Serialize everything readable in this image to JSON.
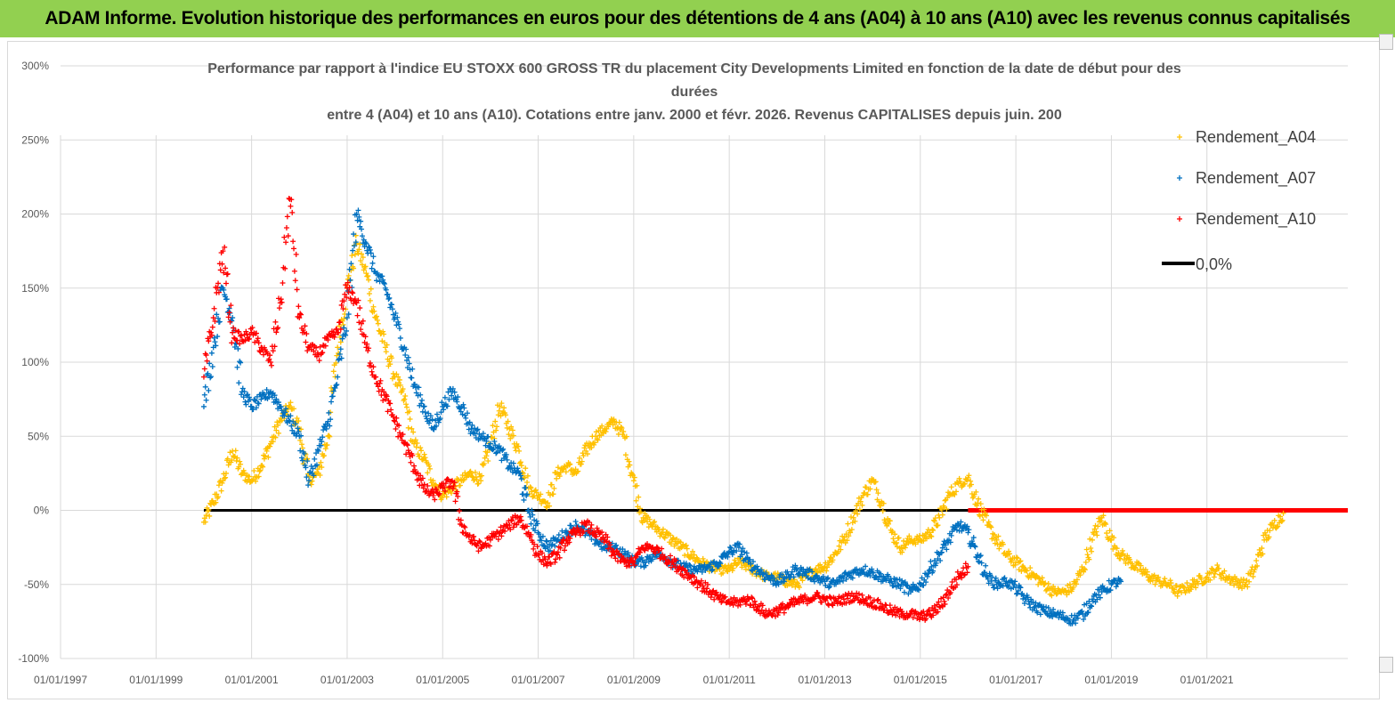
{
  "header": {
    "title": "ADAM Informe. Evolution historique des performances en euros pour des détentions de 4 ans (A04) à 10 ans (A10) avec les revenus connus capitalisés"
  },
  "colors": {
    "banner": "#92d050",
    "a04": "#ffc000",
    "a07": "#0070c0",
    "a10": "#ff0000",
    "zero": "#000000",
    "grid": "#d9d9d9",
    "text": "#595959"
  },
  "chart_data": {
    "type": "scatter",
    "title_lines": [
      "Performance par rapport à l'indice EU STOXX 600 GROSS TR  du placement City Developments Limited en fonction de la date de début pour des",
      "durées",
      "entre 4 (A04) et 10 ans (A10).  Cotations entre janv. 2000 et févr. 2026. Revenus CAPITALISES depuis juin. 200"
    ],
    "xlabel": "",
    "ylabel": "",
    "xlim": [
      1997.0,
      2023.95
    ],
    "ylim": [
      -100,
      300
    ],
    "y_ticks": [
      300,
      250,
      200,
      150,
      100,
      50,
      0,
      -50,
      -100
    ],
    "y_tick_labels": [
      "300%",
      "250%",
      "200%",
      "150%",
      "100%",
      "50%",
      "0%",
      "-50%",
      "-100%"
    ],
    "x_ticks": [
      1997,
      1999,
      2001,
      2003,
      2005,
      2007,
      2009,
      2011,
      2013,
      2015,
      2017,
      2019,
      2021
    ],
    "x_tick_labels": [
      "01/01/1997",
      "01/01/1999",
      "01/01/2001",
      "01/01/2003",
      "01/01/2005",
      "01/01/2007",
      "01/01/2009",
      "01/01/2011",
      "01/01/2013",
      "01/01/2015",
      "01/01/2017",
      "01/01/2019",
      "01/01/2021"
    ],
    "grid": true,
    "legend_position": "right",
    "marker": "+",
    "series": [
      {
        "name": "Rendement_A04",
        "color": "#ffc000",
        "x": [
          2000.0,
          2000.2,
          2000.4,
          2000.6,
          2000.8,
          2001.0,
          2001.2,
          2001.4,
          2001.6,
          2001.8,
          2002.0,
          2002.2,
          2002.4,
          2002.6,
          2002.8,
          2003.0,
          2003.2,
          2003.4,
          2003.6,
          2003.8,
          2004.0,
          2004.2,
          2004.4,
          2004.6,
          2004.8,
          2005.0,
          2005.2,
          2005.4,
          2005.6,
          2005.8,
          2006.0,
          2006.2,
          2006.4,
          2006.6,
          2006.8,
          2007.0,
          2007.2,
          2007.4,
          2007.6,
          2007.8,
          2008.0,
          2008.2,
          2008.4,
          2008.6,
          2008.8,
          2009.0,
          2009.2,
          2009.4,
          2009.6,
          2009.8,
          2010.0,
          2010.2,
          2010.4,
          2010.6,
          2010.8,
          2011.0,
          2011.2,
          2011.4,
          2011.6,
          2011.8,
          2012.0,
          2012.2,
          2012.4,
          2012.6,
          2012.8,
          2013.0,
          2013.2,
          2013.4,
          2013.6,
          2013.8,
          2014.0,
          2014.2,
          2014.4,
          2014.6,
          2014.8,
          2015.0,
          2015.2,
          2015.4,
          2015.6,
          2015.8,
          2016.0,
          2016.2,
          2016.4,
          2016.6,
          2016.8,
          2017.0,
          2017.2,
          2017.4,
          2017.6,
          2017.8,
          2018.0,
          2018.2,
          2018.4,
          2018.6,
          2018.8,
          2019.0,
          2019.2,
          2019.4,
          2019.6,
          2019.8,
          2020.0,
          2020.2,
          2020.4,
          2020.6,
          2020.8,
          2021.0,
          2021.2,
          2021.4,
          2021.6,
          2021.8,
          2022.0,
          2022.2,
          2022.4,
          2022.6
        ],
        "y": [
          -8,
          5,
          20,
          40,
          25,
          20,
          30,
          45,
          60,
          70,
          55,
          20,
          25,
          50,
          110,
          150,
          180,
          160,
          130,
          110,
          90,
          75,
          45,
          35,
          20,
          10,
          15,
          20,
          25,
          20,
          45,
          70,
          55,
          40,
          15,
          10,
          5,
          25,
          30,
          25,
          40,
          50,
          55,
          60,
          50,
          20,
          -5,
          -10,
          -15,
          -20,
          -25,
          -30,
          -35,
          -38,
          -40,
          -40,
          -35,
          -38,
          -42,
          -45,
          -45,
          -48,
          -50,
          -45,
          -40,
          -38,
          -30,
          -20,
          -5,
          10,
          20,
          5,
          -15,
          -25,
          -20,
          -20,
          -15,
          -5,
          10,
          18,
          22,
          5,
          -10,
          -20,
          -30,
          -35,
          -40,
          -45,
          -50,
          -55,
          -55,
          -52,
          -40,
          -20,
          -5,
          -20,
          -30,
          -35,
          -40,
          -45,
          -48,
          -50,
          -55,
          -52,
          -48,
          -45,
          -40,
          -45,
          -48,
          -50,
          -40,
          -20,
          -10,
          -2
        ]
      },
      {
        "name": "Rendement_A07",
        "color": "#0070c0",
        "x": [
          2000.0,
          2000.2,
          2000.4,
          2000.6,
          2000.8,
          2001.0,
          2001.2,
          2001.4,
          2001.6,
          2001.8,
          2002.0,
          2002.2,
          2002.4,
          2002.6,
          2002.8,
          2003.0,
          2003.2,
          2003.4,
          2003.6,
          2003.8,
          2004.0,
          2004.2,
          2004.4,
          2004.6,
          2004.8,
          2005.0,
          2005.2,
          2005.4,
          2005.6,
          2005.8,
          2006.0,
          2006.2,
          2006.4,
          2006.6,
          2006.8,
          2007.0,
          2007.2,
          2007.4,
          2007.6,
          2007.8,
          2008.0,
          2008.2,
          2008.4,
          2008.6,
          2008.8,
          2009.0,
          2009.2,
          2009.4,
          2009.6,
          2009.8,
          2010.0,
          2010.2,
          2010.4,
          2010.6,
          2010.8,
          2011.0,
          2011.2,
          2011.4,
          2011.6,
          2011.8,
          2012.0,
          2012.2,
          2012.4,
          2012.6,
          2012.8,
          2013.0,
          2013.2,
          2013.4,
          2013.6,
          2013.8,
          2014.0,
          2014.2,
          2014.4,
          2014.6,
          2014.8,
          2015.0,
          2015.2,
          2015.4,
          2015.6,
          2015.8,
          2016.0,
          2016.2,
          2016.4,
          2016.6,
          2016.8,
          2017.0,
          2017.2,
          2017.4,
          2017.6,
          2017.8,
          2018.0,
          2018.2,
          2018.4,
          2018.6,
          2018.8,
          2019.0,
          2019.2
        ],
        "y": [
          70,
          110,
          150,
          130,
          80,
          70,
          75,
          80,
          70,
          60,
          50,
          20,
          40,
          60,
          90,
          130,
          200,
          180,
          160,
          150,
          130,
          110,
          85,
          70,
          55,
          70,
          80,
          70,
          55,
          50,
          45,
          40,
          30,
          25,
          0,
          -15,
          -25,
          -20,
          -15,
          -10,
          -15,
          -20,
          -25,
          -25,
          -30,
          -35,
          -35,
          -30,
          -30,
          -35,
          -38,
          -40,
          -40,
          -38,
          -35,
          -28,
          -25,
          -35,
          -40,
          -45,
          -48,
          -45,
          -40,
          -42,
          -45,
          -48,
          -50,
          -45,
          -42,
          -40,
          -42,
          -45,
          -48,
          -50,
          -55,
          -50,
          -40,
          -30,
          -20,
          -10,
          -15,
          -30,
          -45,
          -50,
          -48,
          -52,
          -60,
          -65,
          -68,
          -70,
          -72,
          -74,
          -70,
          -60,
          -55,
          -50,
          -48
        ]
      },
      {
        "name": "Rendement_A10",
        "color": "#ff0000",
        "x": [
          2000.0,
          2000.2,
          2000.4,
          2000.6,
          2000.8,
          2001.0,
          2001.2,
          2001.4,
          2001.6,
          2001.8,
          2002.0,
          2002.2,
          2002.4,
          2002.6,
          2002.8,
          2003.0,
          2003.2,
          2003.4,
          2003.6,
          2003.8,
          2004.0,
          2004.2,
          2004.4,
          2004.6,
          2004.8,
          2005.0,
          2005.2,
          2005.4,
          2005.6,
          2005.8,
          2006.0,
          2006.2,
          2006.4,
          2006.6,
          2006.8,
          2007.0,
          2007.2,
          2007.4,
          2007.6,
          2007.8,
          2008.0,
          2008.2,
          2008.4,
          2008.6,
          2008.8,
          2009.0,
          2009.2,
          2009.4,
          2009.6,
          2009.8,
          2010.0,
          2010.2,
          2010.4,
          2010.6,
          2010.8,
          2011.0,
          2011.2,
          2011.4,
          2011.6,
          2011.8,
          2012.0,
          2012.2,
          2012.4,
          2012.6,
          2012.8,
          2013.0,
          2013.2,
          2013.4,
          2013.6,
          2013.8,
          2014.0,
          2014.2,
          2014.4,
          2014.6,
          2014.8,
          2015.0,
          2015.2,
          2015.4,
          2015.6,
          2015.8,
          2016.0
        ],
        "y": [
          90,
          130,
          175,
          120,
          115,
          120,
          110,
          100,
          140,
          210,
          130,
          110,
          105,
          115,
          120,
          150,
          140,
          110,
          90,
          75,
          60,
          45,
          30,
          15,
          10,
          15,
          20,
          -10,
          -20,
          -25,
          -20,
          -15,
          -10,
          -5,
          -15,
          -30,
          -35,
          -30,
          -20,
          -15,
          -10,
          -15,
          -20,
          -30,
          -35,
          -35,
          -25,
          -25,
          -30,
          -35,
          -40,
          -45,
          -50,
          -55,
          -60,
          -62,
          -62,
          -60,
          -65,
          -70,
          -68,
          -65,
          -62,
          -60,
          -58,
          -60,
          -62,
          -60,
          -58,
          -60,
          -62,
          -65,
          -68,
          -70,
          -70,
          -72,
          -70,
          -65,
          -55,
          -45,
          -38
        ]
      },
      {
        "name": "0,0%",
        "color": "#000000",
        "x": [
          2000.0,
          2016.0
        ],
        "y": [
          0,
          0
        ]
      }
    ],
    "red_zero_line": {
      "x": [
        2016.0,
        2023.95
      ],
      "y": [
        0,
        0
      ]
    }
  }
}
